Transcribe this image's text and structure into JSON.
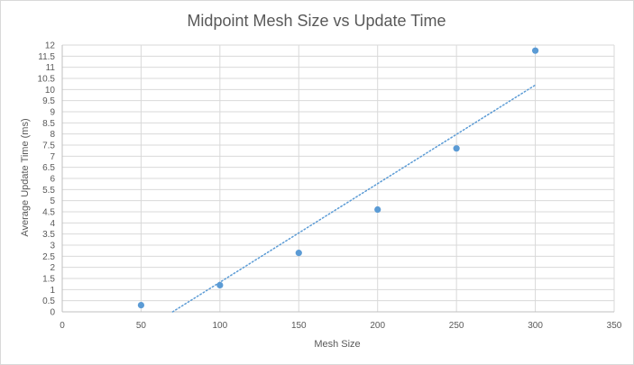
{
  "chart_data": {
    "type": "scatter",
    "title": "Midpoint Mesh Size vs Update Time",
    "xlabel": "Mesh Size",
    "ylabel": "Average Update Time  (ms)",
    "xlim": [
      0,
      350
    ],
    "ylim": [
      0,
      12
    ],
    "xticks": [
      0,
      50,
      100,
      150,
      200,
      250,
      300,
      350
    ],
    "yticks": [
      0,
      0.5,
      1,
      1.5,
      2,
      2.5,
      3,
      3.5,
      4,
      4.5,
      5,
      5.5,
      6,
      6.5,
      7,
      7.5,
      8,
      8.5,
      9,
      9.5,
      10,
      10.5,
      11,
      11.5,
      12
    ],
    "grid": true,
    "series": [
      {
        "x": [
          50,
          100,
          150,
          200,
          250,
          300
        ],
        "y": [
          0.3,
          1.2,
          2.65,
          4.6,
          7.35,
          11.75
        ],
        "color": "#5b9bd5"
      }
    ],
    "trendline": {
      "kind": "linear",
      "style": "dotted",
      "color": "#5b9bd5",
      "x": [
        70,
        300
      ],
      "y": [
        0,
        10.2
      ]
    }
  }
}
